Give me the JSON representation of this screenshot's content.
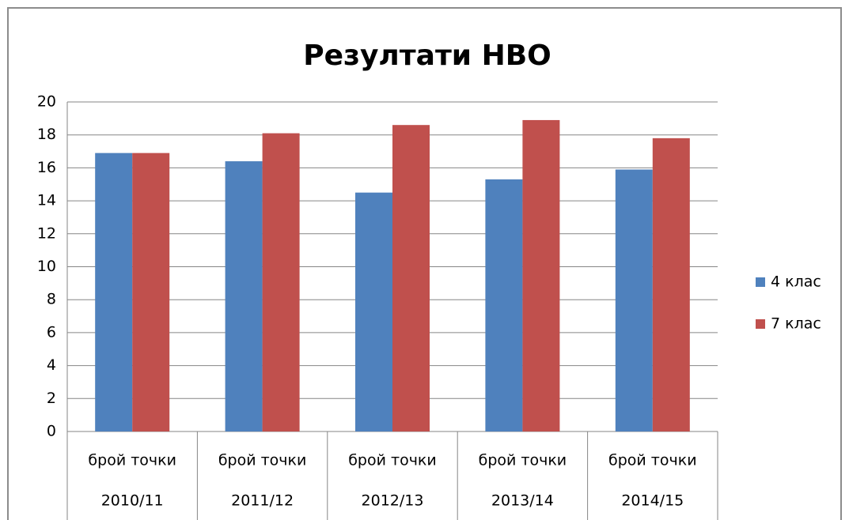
{
  "chart_data": {
    "type": "bar",
    "title": "Резултати НВО",
    "categories": [
      "брой точки",
      "брой точки",
      "брой точки",
      "брой точки",
      "брой точки"
    ],
    "category_groups": [
      "2010/11",
      "2011/12",
      "2012/13",
      "2013/14",
      "2014/15"
    ],
    "series": [
      {
        "name": "4 клас",
        "color": "#4f81bd",
        "values": [
          16.9,
          16.4,
          14.5,
          15.3,
          15.9
        ]
      },
      {
        "name": "7 клас",
        "color": "#c0504d",
        "values": [
          16.9,
          18.1,
          18.6,
          18.9,
          17.8
        ]
      }
    ],
    "ylim": [
      0,
      20
    ],
    "yticks": [
      0,
      2,
      4,
      6,
      8,
      10,
      12,
      14,
      16,
      18,
      20
    ],
    "grid": true,
    "legend": "right"
  }
}
